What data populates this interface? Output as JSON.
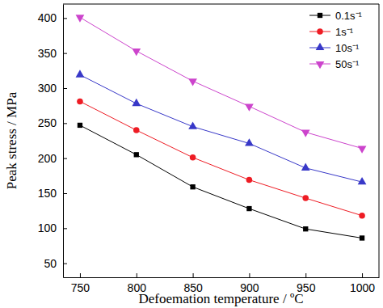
{
  "chart_data": {
    "type": "line",
    "x_label": "Defoemation temperature / ºC",
    "y_label": "Peak stress / MPa",
    "x": [
      750,
      800,
      850,
      900,
      950,
      1000
    ],
    "series": [
      {
        "name": "0.1s⁻¹",
        "color": "#000000",
        "marker": "square",
        "values": [
          247,
          205,
          159,
          128,
          99,
          86
        ]
      },
      {
        "name": "1s⁻¹",
        "color": "#ee1c24",
        "marker": "circle",
        "values": [
          281,
          240,
          201,
          169,
          143,
          118
        ]
      },
      {
        "name": "10s⁻¹",
        "color": "#3838c8",
        "marker": "triangle-up",
        "values": [
          319,
          278,
          245,
          221,
          186,
          166
        ]
      },
      {
        "name": "50s⁻¹",
        "color": "#cc44cc",
        "marker": "triangle-down",
        "values": [
          401,
          353,
          310,
          274,
          237,
          214
        ]
      }
    ],
    "xlim": [
      735,
      1015
    ],
    "xticks": [
      750,
      800,
      850,
      900,
      950,
      1000
    ],
    "ylim": [
      30,
      420
    ],
    "yticks": [
      50,
      100,
      150,
      200,
      250,
      300,
      350,
      400
    ],
    "grid": false,
    "legend": "top-right"
  }
}
